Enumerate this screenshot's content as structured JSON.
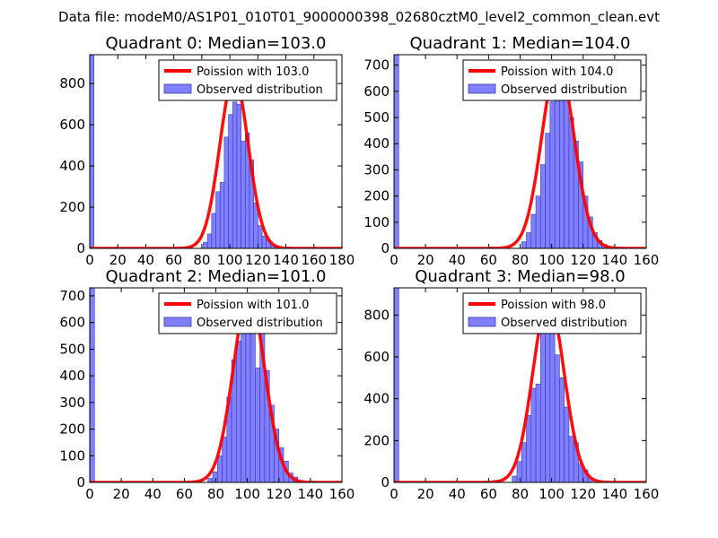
{
  "suptitle": "Data file: modeM0/AS1P01_010T01_9000000398_02680cztM0_level2_common_clean.evt",
  "colors": {
    "bar_fill": "#7f7fff",
    "bar_edge": "#3a3aa8",
    "fit_line": "#ff0000",
    "axis": "#000000"
  },
  "chart_data": [
    {
      "type": "bar",
      "title": "Quadrant 0: Median=103.0",
      "xlim": [
        0,
        180
      ],
      "ylim": [
        0,
        940
      ],
      "xticks": [
        0,
        20,
        40,
        60,
        80,
        100,
        120,
        140,
        160,
        180
      ],
      "yticks": [
        0,
        200,
        400,
        600,
        800
      ],
      "bin_width": 3,
      "bins": [
        {
          "x": 0,
          "y": 940
        },
        {
          "x": 81,
          "y": 30
        },
        {
          "x": 84,
          "y": 70
        },
        {
          "x": 87,
          "y": 170
        },
        {
          "x": 90,
          "y": 275
        },
        {
          "x": 93,
          "y": 320
        },
        {
          "x": 96,
          "y": 540
        },
        {
          "x": 99,
          "y": 650
        },
        {
          "x": 102,
          "y": 710
        },
        {
          "x": 105,
          "y": 700
        },
        {
          "x": 108,
          "y": 520
        },
        {
          "x": 111,
          "y": 560
        },
        {
          "x": 114,
          "y": 430
        },
        {
          "x": 117,
          "y": 220
        },
        {
          "x": 120,
          "y": 110
        },
        {
          "x": 123,
          "y": 60
        },
        {
          "x": 126,
          "y": 40
        },
        {
          "x": 129,
          "y": 20
        }
      ],
      "poisson_mean": 103.0,
      "poisson_peak": 830,
      "legend": {
        "line": "Poission with 103.0",
        "bars": "Observed distribution"
      }
    },
    {
      "type": "bar",
      "title": "Quadrant 1: Median=104.0",
      "xlim": [
        0,
        160
      ],
      "ylim": [
        0,
        740
      ],
      "xticks": [
        0,
        20,
        40,
        60,
        80,
        100,
        120,
        140,
        160
      ],
      "yticks": [
        0,
        100,
        200,
        300,
        400,
        500,
        600,
        700
      ],
      "bin_width": 3,
      "bins": [
        {
          "x": 0,
          "y": 740
        },
        {
          "x": 60,
          "y": 5
        },
        {
          "x": 81,
          "y": 25
        },
        {
          "x": 84,
          "y": 60
        },
        {
          "x": 87,
          "y": 130
        },
        {
          "x": 90,
          "y": 200
        },
        {
          "x": 93,
          "y": 320
        },
        {
          "x": 96,
          "y": 440
        },
        {
          "x": 99,
          "y": 560
        },
        {
          "x": 102,
          "y": 650
        },
        {
          "x": 105,
          "y": 690
        },
        {
          "x": 108,
          "y": 620
        },
        {
          "x": 111,
          "y": 500
        },
        {
          "x": 114,
          "y": 410
        },
        {
          "x": 117,
          "y": 330
        },
        {
          "x": 120,
          "y": 200
        },
        {
          "x": 123,
          "y": 120
        },
        {
          "x": 126,
          "y": 60
        },
        {
          "x": 129,
          "y": 30
        },
        {
          "x": 132,
          "y": 15
        }
      ],
      "poisson_mean": 104.0,
      "poisson_peak": 710,
      "legend": {
        "line": "Poission with 104.0",
        "bars": "Observed distribution"
      }
    },
    {
      "type": "bar",
      "title": "Quadrant 2: Median=101.0",
      "xlim": [
        0,
        160
      ],
      "ylim": [
        0,
        730
      ],
      "xticks": [
        0,
        20,
        40,
        60,
        80,
        100,
        120,
        140,
        160
      ],
      "yticks": [
        0,
        100,
        200,
        300,
        400,
        500,
        600,
        700
      ],
      "bin_width": 3,
      "bins": [
        {
          "x": 0,
          "y": 730
        },
        {
          "x": 63,
          "y": 5
        },
        {
          "x": 75,
          "y": 15
        },
        {
          "x": 78,
          "y": 40
        },
        {
          "x": 81,
          "y": 100
        },
        {
          "x": 84,
          "y": 170
        },
        {
          "x": 87,
          "y": 320
        },
        {
          "x": 90,
          "y": 460
        },
        {
          "x": 93,
          "y": 530
        },
        {
          "x": 96,
          "y": 610
        },
        {
          "x": 99,
          "y": 700
        },
        {
          "x": 102,
          "y": 650
        },
        {
          "x": 105,
          "y": 430
        },
        {
          "x": 108,
          "y": 580
        },
        {
          "x": 111,
          "y": 420
        },
        {
          "x": 114,
          "y": 290
        },
        {
          "x": 117,
          "y": 200
        },
        {
          "x": 120,
          "y": 130
        },
        {
          "x": 123,
          "y": 80
        },
        {
          "x": 126,
          "y": 35
        },
        {
          "x": 129,
          "y": 20
        }
      ],
      "poisson_mean": 101.0,
      "poisson_peak": 700,
      "legend": {
        "line": "Poission with 101.0",
        "bars": "Observed distribution"
      }
    },
    {
      "type": "bar",
      "title": "Quadrant 3: Median=98.0",
      "xlim": [
        0,
        160
      ],
      "ylim": [
        0,
        930
      ],
      "xticks": [
        0,
        20,
        40,
        60,
        80,
        100,
        120,
        140,
        160
      ],
      "yticks": [
        0,
        200,
        400,
        600,
        800
      ],
      "bin_width": 3,
      "bins": [
        {
          "x": 0,
          "y": 930
        },
        {
          "x": 51,
          "y": 5
        },
        {
          "x": 63,
          "y": 10
        },
        {
          "x": 75,
          "y": 30
        },
        {
          "x": 78,
          "y": 100
        },
        {
          "x": 81,
          "y": 190
        },
        {
          "x": 84,
          "y": 320
        },
        {
          "x": 87,
          "y": 450
        },
        {
          "x": 90,
          "y": 470
        },
        {
          "x": 93,
          "y": 720
        },
        {
          "x": 96,
          "y": 890
        },
        {
          "x": 99,
          "y": 750
        },
        {
          "x": 102,
          "y": 610
        },
        {
          "x": 105,
          "y": 500
        },
        {
          "x": 108,
          "y": 360
        },
        {
          "x": 111,
          "y": 220
        },
        {
          "x": 114,
          "y": 190
        },
        {
          "x": 117,
          "y": 90
        },
        {
          "x": 120,
          "y": 60
        },
        {
          "x": 123,
          "y": 20
        }
      ],
      "poisson_mean": 98.0,
      "poisson_peak": 870,
      "legend": {
        "line": "Poission with 98.0",
        "bars": "Observed distribution"
      }
    }
  ]
}
